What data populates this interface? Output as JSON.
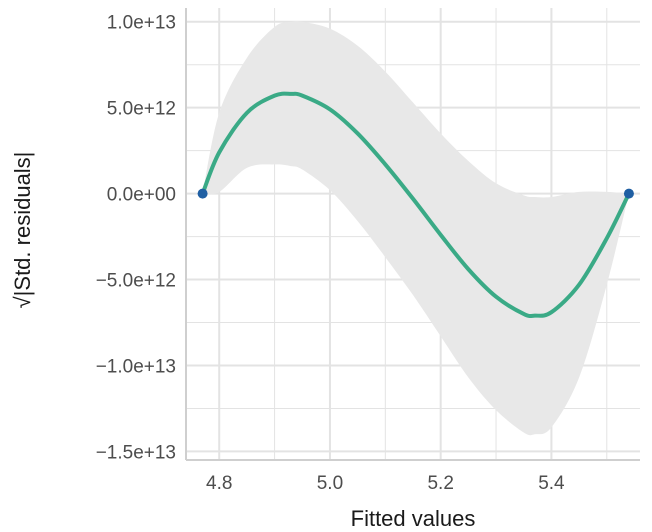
{
  "chart_data": {
    "type": "line",
    "title": "",
    "xlabel": "Fitted values",
    "ylabel": "√|Std. residuals|",
    "xlim": [
      4.74,
      5.56
    ],
    "ylim": [
      -15500000000000.0,
      10800000000000.0
    ],
    "x_ticks": [
      {
        "value": 4.8,
        "label": "4.8"
      },
      {
        "value": 5.0,
        "label": "5.0"
      },
      {
        "value": 5.2,
        "label": "5.2"
      },
      {
        "value": 5.4,
        "label": "5.4"
      }
    ],
    "y_ticks": [
      {
        "value": 10000000000000.0,
        "label": "1.0e+13"
      },
      {
        "value": 5000000000000.0,
        "label": "5.0e+12"
      },
      {
        "value": 0,
        "label": "0.0e+00"
      },
      {
        "value": -5000000000000.0,
        "label": "−5.0e+12"
      },
      {
        "value": -10000000000000.0,
        "label": "−1.0e+13"
      },
      {
        "value": -15000000000000.0,
        "label": "−1.5e+13"
      }
    ],
    "grid": true,
    "points": [
      {
        "x": 4.77,
        "y": 0
      },
      {
        "x": 5.54,
        "y": 0
      }
    ],
    "smooth": {
      "x": [
        4.77,
        4.8,
        4.85,
        4.9,
        4.93,
        4.95,
        5.0,
        5.05,
        5.1,
        5.15,
        5.2,
        5.25,
        5.3,
        5.35,
        5.37,
        5.4,
        5.45,
        5.5,
        5.54
      ],
      "y": [
        0,
        2400000000000.0,
        4700000000000.0,
        5700000000000.0,
        5800000000000.0,
        5700000000000.0,
        4900000000000.0,
        3500000000000.0,
        1700000000000.0,
        -300000000000.0,
        -2400000000000.0,
        -4400000000000.0,
        -6000000000000.0,
        -7000000000000.0,
        -7100000000000.0,
        -6900000000000.0,
        -5300000000000.0,
        -2600000000000.0,
        0
      ],
      "ci_upper": [
        0,
        4700000000000.0,
        7900000000000.0,
        9700000000000.0,
        10000000000000.0,
        10000000000000.0,
        9600000000000.0,
        8600000000000.0,
        7100000000000.0,
        5300000000000.0,
        3500000000000.0,
        1900000000000.0,
        600000000000.0,
        -100000000000.0,
        -200000000000.0,
        -200000000000.0,
        100000000000.0,
        100000000000.0,
        0
      ],
      "ci_lower": [
        0,
        100000000000.0,
        1500000000000.0,
        1700000000000.0,
        1600000000000.0,
        1400000000000.0,
        200000000000.0,
        -1600000000000.0,
        -3700000000000.0,
        -5900000000000.0,
        -8300000000000.0,
        -10700000000000.0,
        -12600000000000.0,
        -13900000000000.0,
        -14000000000000.0,
        -13600000000000.0,
        -10700000000000.0,
        -5300000000000.0,
        0
      ]
    },
    "colors": {
      "line": "#3aaa86",
      "band": "#e8e8e8",
      "point": "#1f5fa3",
      "grid": "#e3e3e3",
      "axis": "#cfcfcf"
    }
  }
}
